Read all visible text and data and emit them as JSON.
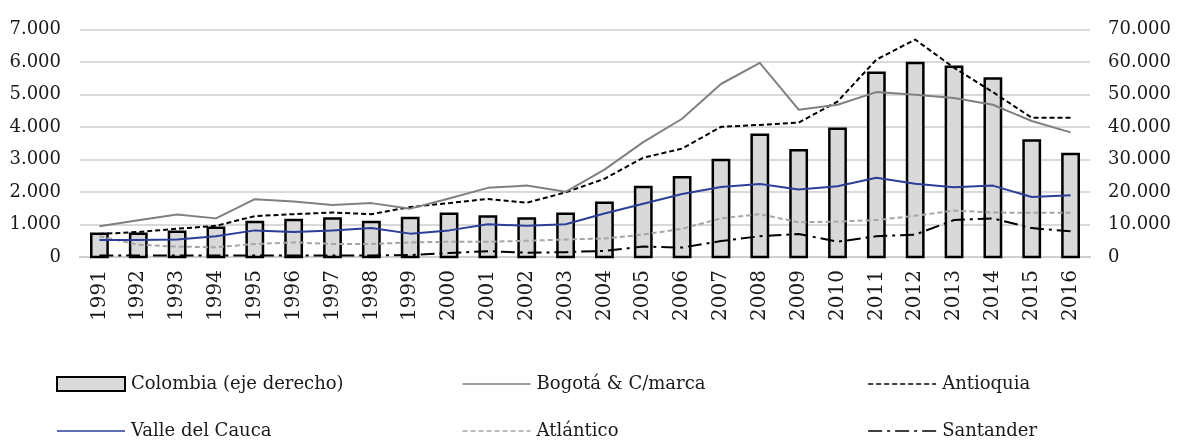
{
  "chart_data": {
    "type": "bar",
    "categories": [
      "1991",
      "1992",
      "1993",
      "1994",
      "1995",
      "1996",
      "1997",
      "1998",
      "1999",
      "2000",
      "2001",
      "2002",
      "2003",
      "2004",
      "2005",
      "2006",
      "2007",
      "2008",
      "2009",
      "2010",
      "2011",
      "2012",
      "2013",
      "2014",
      "2015",
      "2016"
    ],
    "series": [
      {
        "name": "Colombia (eje derecho)",
        "axis": "y2",
        "color": "#d9d9d9",
        "values": [
          7200,
          7200,
          7800,
          9000,
          10800,
          11400,
          11900,
          10800,
          12000,
          13300,
          12500,
          11900,
          13300,
          16700,
          21600,
          24600,
          29900,
          37700,
          32900,
          39500,
          56800,
          59800,
          58600,
          55000,
          35900,
          31700
        ]
      },
      {
        "name": "Bogotá & C/marca",
        "type": "line",
        "color": "#808080",
        "line_style": "solid",
        "values": [
          950,
          1130,
          1310,
          1190,
          1780,
          1710,
          1600,
          1660,
          1490,
          1800,
          2130,
          2200,
          2010,
          2690,
          3540,
          4260,
          5330,
          5980,
          4540,
          4690,
          5080,
          5000,
          4900,
          4690,
          4190,
          3840
        ]
      },
      {
        "name": "Antioquia",
        "type": "line",
        "color": "#000000",
        "line_style": "dashed",
        "values": [
          710,
          770,
          870,
          960,
          1260,
          1320,
          1370,
          1320,
          1540,
          1660,
          1790,
          1670,
          1990,
          2410,
          3060,
          3340,
          4010,
          4070,
          4140,
          4790,
          6080,
          6700,
          5830,
          5080,
          4290,
          4290
        ]
      },
      {
        "name": "Valle del Cauca",
        "type": "line",
        "color": "#2b3f98",
        "line_style": "solid",
        "values": [
          520,
          520,
          540,
          640,
          820,
          770,
          820,
          890,
          720,
          820,
          1010,
          960,
          1010,
          1340,
          1640,
          1940,
          2160,
          2250,
          2080,
          2180,
          2440,
          2260,
          2150,
          2200,
          1850,
          1900
        ]
      },
      {
        "name": "Atlántico",
        "type": "line",
        "color": "#a6a6a6",
        "line_style": "dashed",
        "values": [
          640,
          380,
          320,
          300,
          400,
          450,
          400,
          400,
          450,
          470,
          470,
          500,
          540,
          570,
          690,
          870,
          1190,
          1320,
          1070,
          1090,
          1140,
          1270,
          1430,
          1370,
          1360,
          1360
        ]
      },
      {
        "name": "Santander",
        "type": "line",
        "color": "#000000",
        "line_style": "dashdot",
        "values": [
          50,
          50,
          50,
          50,
          50,
          50,
          50,
          50,
          60,
          120,
          180,
          130,
          150,
          190,
          320,
          290,
          490,
          640,
          710,
          470,
          640,
          690,
          1140,
          1190,
          890,
          790
        ]
      }
    ],
    "ylim": [
      0,
      7000
    ],
    "yticks": [
      0,
      {
        "value": 1000,
        "label": "1.000"
      },
      {
        "value": 2000,
        "label": "2.000"
      },
      {
        "value": 3000,
        "label": "3.000"
      },
      {
        "value": 4000,
        "label": "4.000"
      },
      {
        "value": 5000,
        "label": "5.000"
      },
      {
        "value": 6000,
        "label": "6.000"
      },
      {
        "value": 7000,
        "label": "7.000"
      }
    ],
    "y2lim": [
      0,
      70000
    ],
    "y2ticks": [
      0,
      {
        "value": 10000,
        "label": "10.000"
      },
      {
        "value": 20000,
        "label": "20.000"
      },
      {
        "value": 30000,
        "label": "30.000"
      },
      {
        "value": 40000,
        "label": "40.000"
      },
      {
        "value": 50000,
        "label": "50.000"
      },
      {
        "value": 60000,
        "label": "60.000"
      },
      {
        "value": 70000,
        "label": "70.000"
      }
    ],
    "grid": "y",
    "legend": "bottom",
    "marker": "none"
  }
}
